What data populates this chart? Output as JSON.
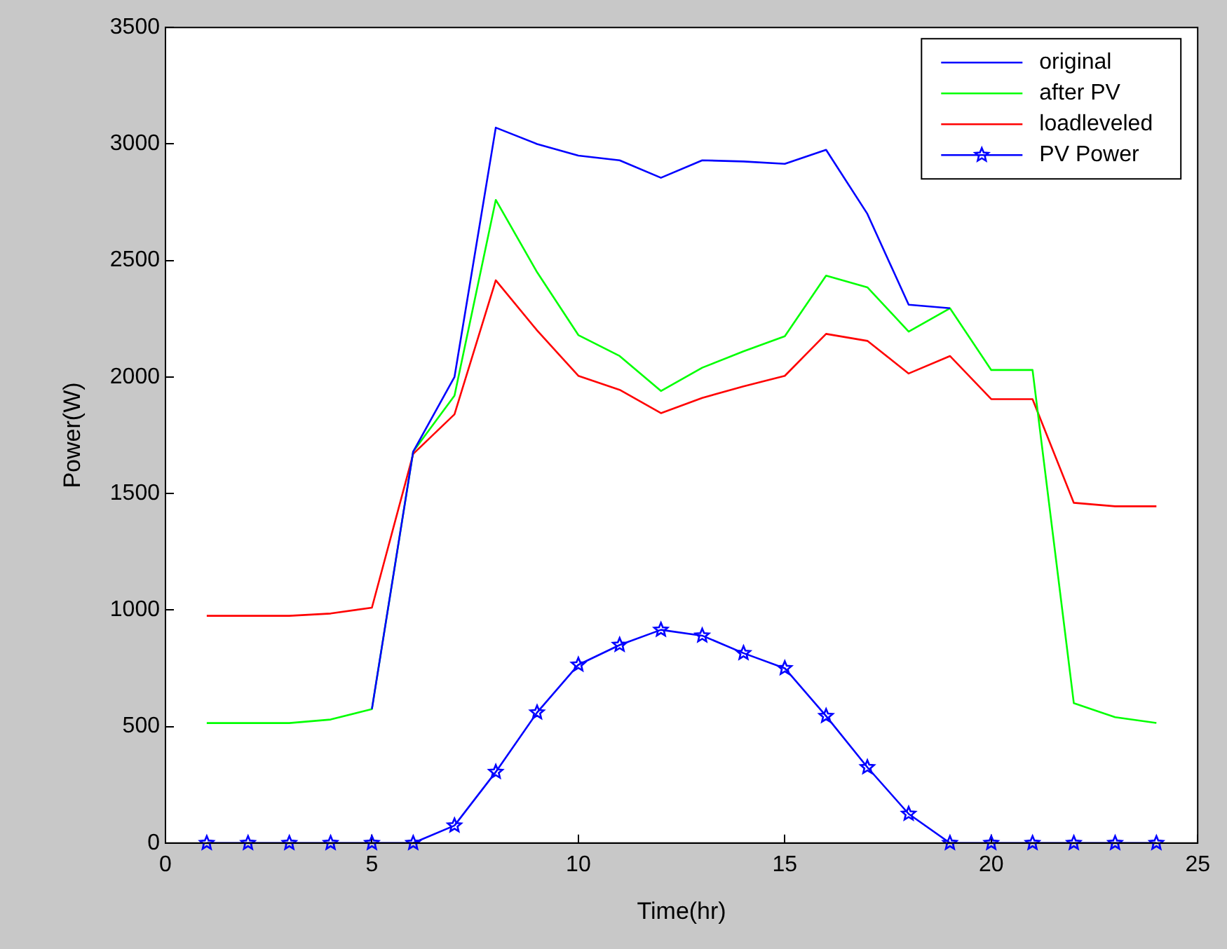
{
  "chart_data": {
    "type": "line",
    "xlabel": "Time(hr)",
    "ylabel": "Power(W)",
    "x": [
      1,
      2,
      3,
      4,
      5,
      6,
      7,
      8,
      9,
      10,
      11,
      12,
      13,
      14,
      15,
      16,
      17,
      18,
      19,
      20,
      21,
      22,
      23,
      24
    ],
    "xlim": [
      0,
      25
    ],
    "xticks": [
      0,
      5,
      10,
      15,
      20,
      25
    ],
    "ylim": [
      0,
      3500
    ],
    "yticks": [
      0,
      500,
      1000,
      1500,
      2000,
      2500,
      3000,
      3500
    ],
    "grid": false,
    "legend": "top right",
    "marker": "none",
    "line_style": "solid",
    "series": [
      {
        "name": "original",
        "color": "#0000ff",
        "values": [
          null,
          null,
          null,
          null,
          575,
          1680,
          2000,
          3070,
          3000,
          2950,
          2930,
          2855,
          2930,
          2925,
          2915,
          2975,
          2700,
          2310,
          2295,
          null,
          null,
          null,
          null,
          null
        ]
      },
      {
        "name": "after PV",
        "color": "#00ff00",
        "values": [
          515,
          515,
          515,
          530,
          575,
          1680,
          1920,
          2760,
          2450,
          2180,
          2090,
          1940,
          2040,
          2110,
          2175,
          2435,
          2385,
          2195,
          2295,
          2030,
          2030,
          600,
          540,
          515
        ]
      },
      {
        "name": "loadleveled",
        "color": "#ff0000",
        "values": [
          975,
          975,
          975,
          985,
          1010,
          1670,
          1840,
          2415,
          2200,
          2005,
          1945,
          1845,
          1910,
          1960,
          2005,
          2185,
          2155,
          2015,
          2090,
          1905,
          1905,
          1460,
          1445,
          1445
        ]
      },
      {
        "name": "PV Power",
        "color": "#0000ff",
        "marker": "star",
        "values": [
          0,
          0,
          0,
          0,
          0,
          0,
          75,
          305,
          560,
          765,
          850,
          915,
          890,
          815,
          750,
          545,
          325,
          125,
          0,
          0,
          0,
          0,
          0,
          0
        ]
      }
    ]
  }
}
